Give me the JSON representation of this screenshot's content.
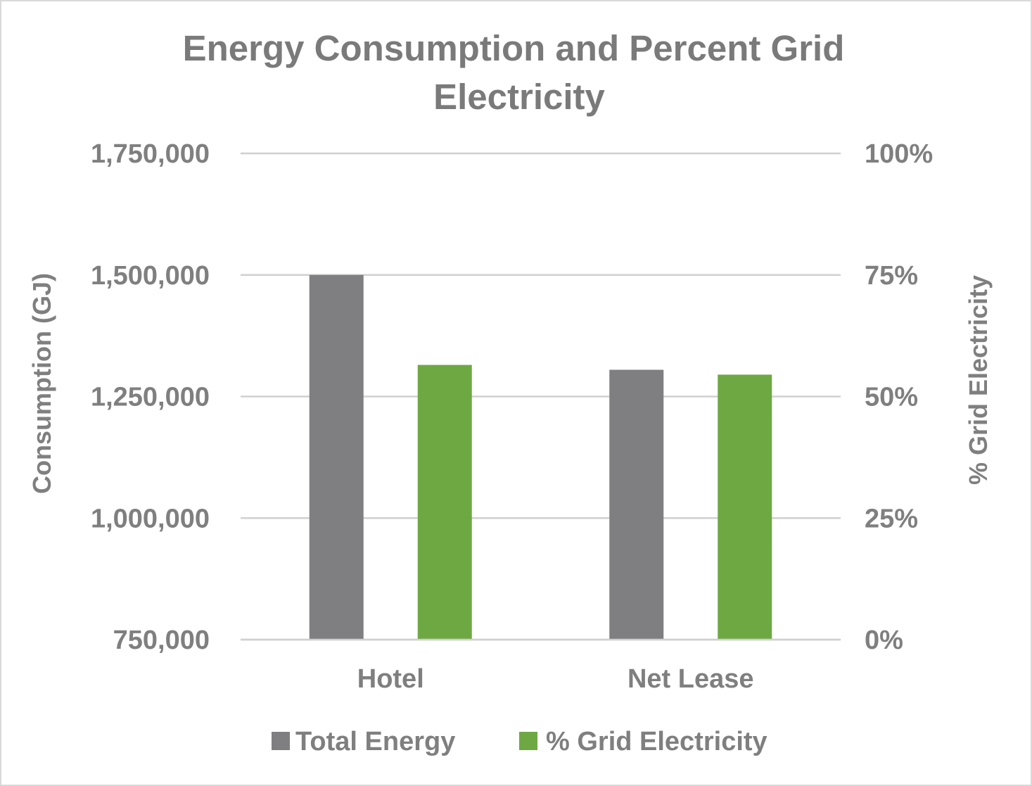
{
  "chart_data": {
    "type": "bar",
    "title": "Energy Consumption and Percent Grid Electricity",
    "title_lines": [
      "Energy Consumption and Percent Grid",
      "Electricity"
    ],
    "categories": [
      "Hotel",
      "Net Lease"
    ],
    "series": [
      {
        "name": "Total Energy",
        "axis": "left",
        "color": "#7f7f82",
        "values": [
          1500000,
          1305000
        ]
      },
      {
        "name": "% Grid Electricity",
        "axis": "right",
        "color": "#6ea843",
        "values": [
          56.5,
          54.5
        ]
      }
    ],
    "ylabel": "Consumption  (GJ)",
    "y2label": "% Grid Electricity",
    "ylim": [
      750000,
      1750000
    ],
    "y2lim": [
      0,
      100
    ],
    "yticks": [
      750000,
      1000000,
      1250000,
      1500000,
      1750000
    ],
    "ytick_labels": [
      "750,000",
      "1,000,000",
      "1,250,000",
      "1,500,000",
      "1,750,000"
    ],
    "y2ticks": [
      0,
      25,
      50,
      75,
      100
    ],
    "y2tick_labels": [
      "0%",
      "25%",
      "50%",
      "75%",
      "100%"
    ],
    "grid": true,
    "legend_position": "bottom"
  }
}
